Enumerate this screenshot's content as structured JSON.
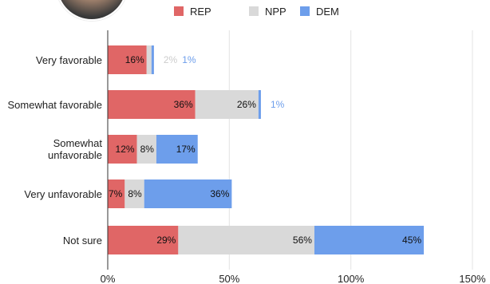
{
  "chart_data": {
    "type": "bar",
    "orientation": "horizontal",
    "stacked": true,
    "categories": [
      "Very favorable",
      "Somewhat favorable",
      "Somewhat unfavorable",
      "Very unfavorable",
      "Not sure"
    ],
    "series": [
      {
        "name": "REP",
        "color": "#e06666",
        "values": [
          16,
          36,
          12,
          7,
          29
        ]
      },
      {
        "name": "NPP",
        "color": "#d9d9d9",
        "values": [
          2,
          26,
          8,
          8,
          56
        ]
      },
      {
        "name": "DEM",
        "color": "#6d9eeb",
        "values": [
          1,
          1,
          17,
          36,
          45
        ]
      }
    ],
    "xlim": [
      0,
      150
    ],
    "xticks": [
      "0%",
      "50%",
      "100%",
      "150%"
    ],
    "xtick_values": [
      0,
      50,
      100,
      150
    ],
    "legend_position": "top",
    "grid": true
  }
}
